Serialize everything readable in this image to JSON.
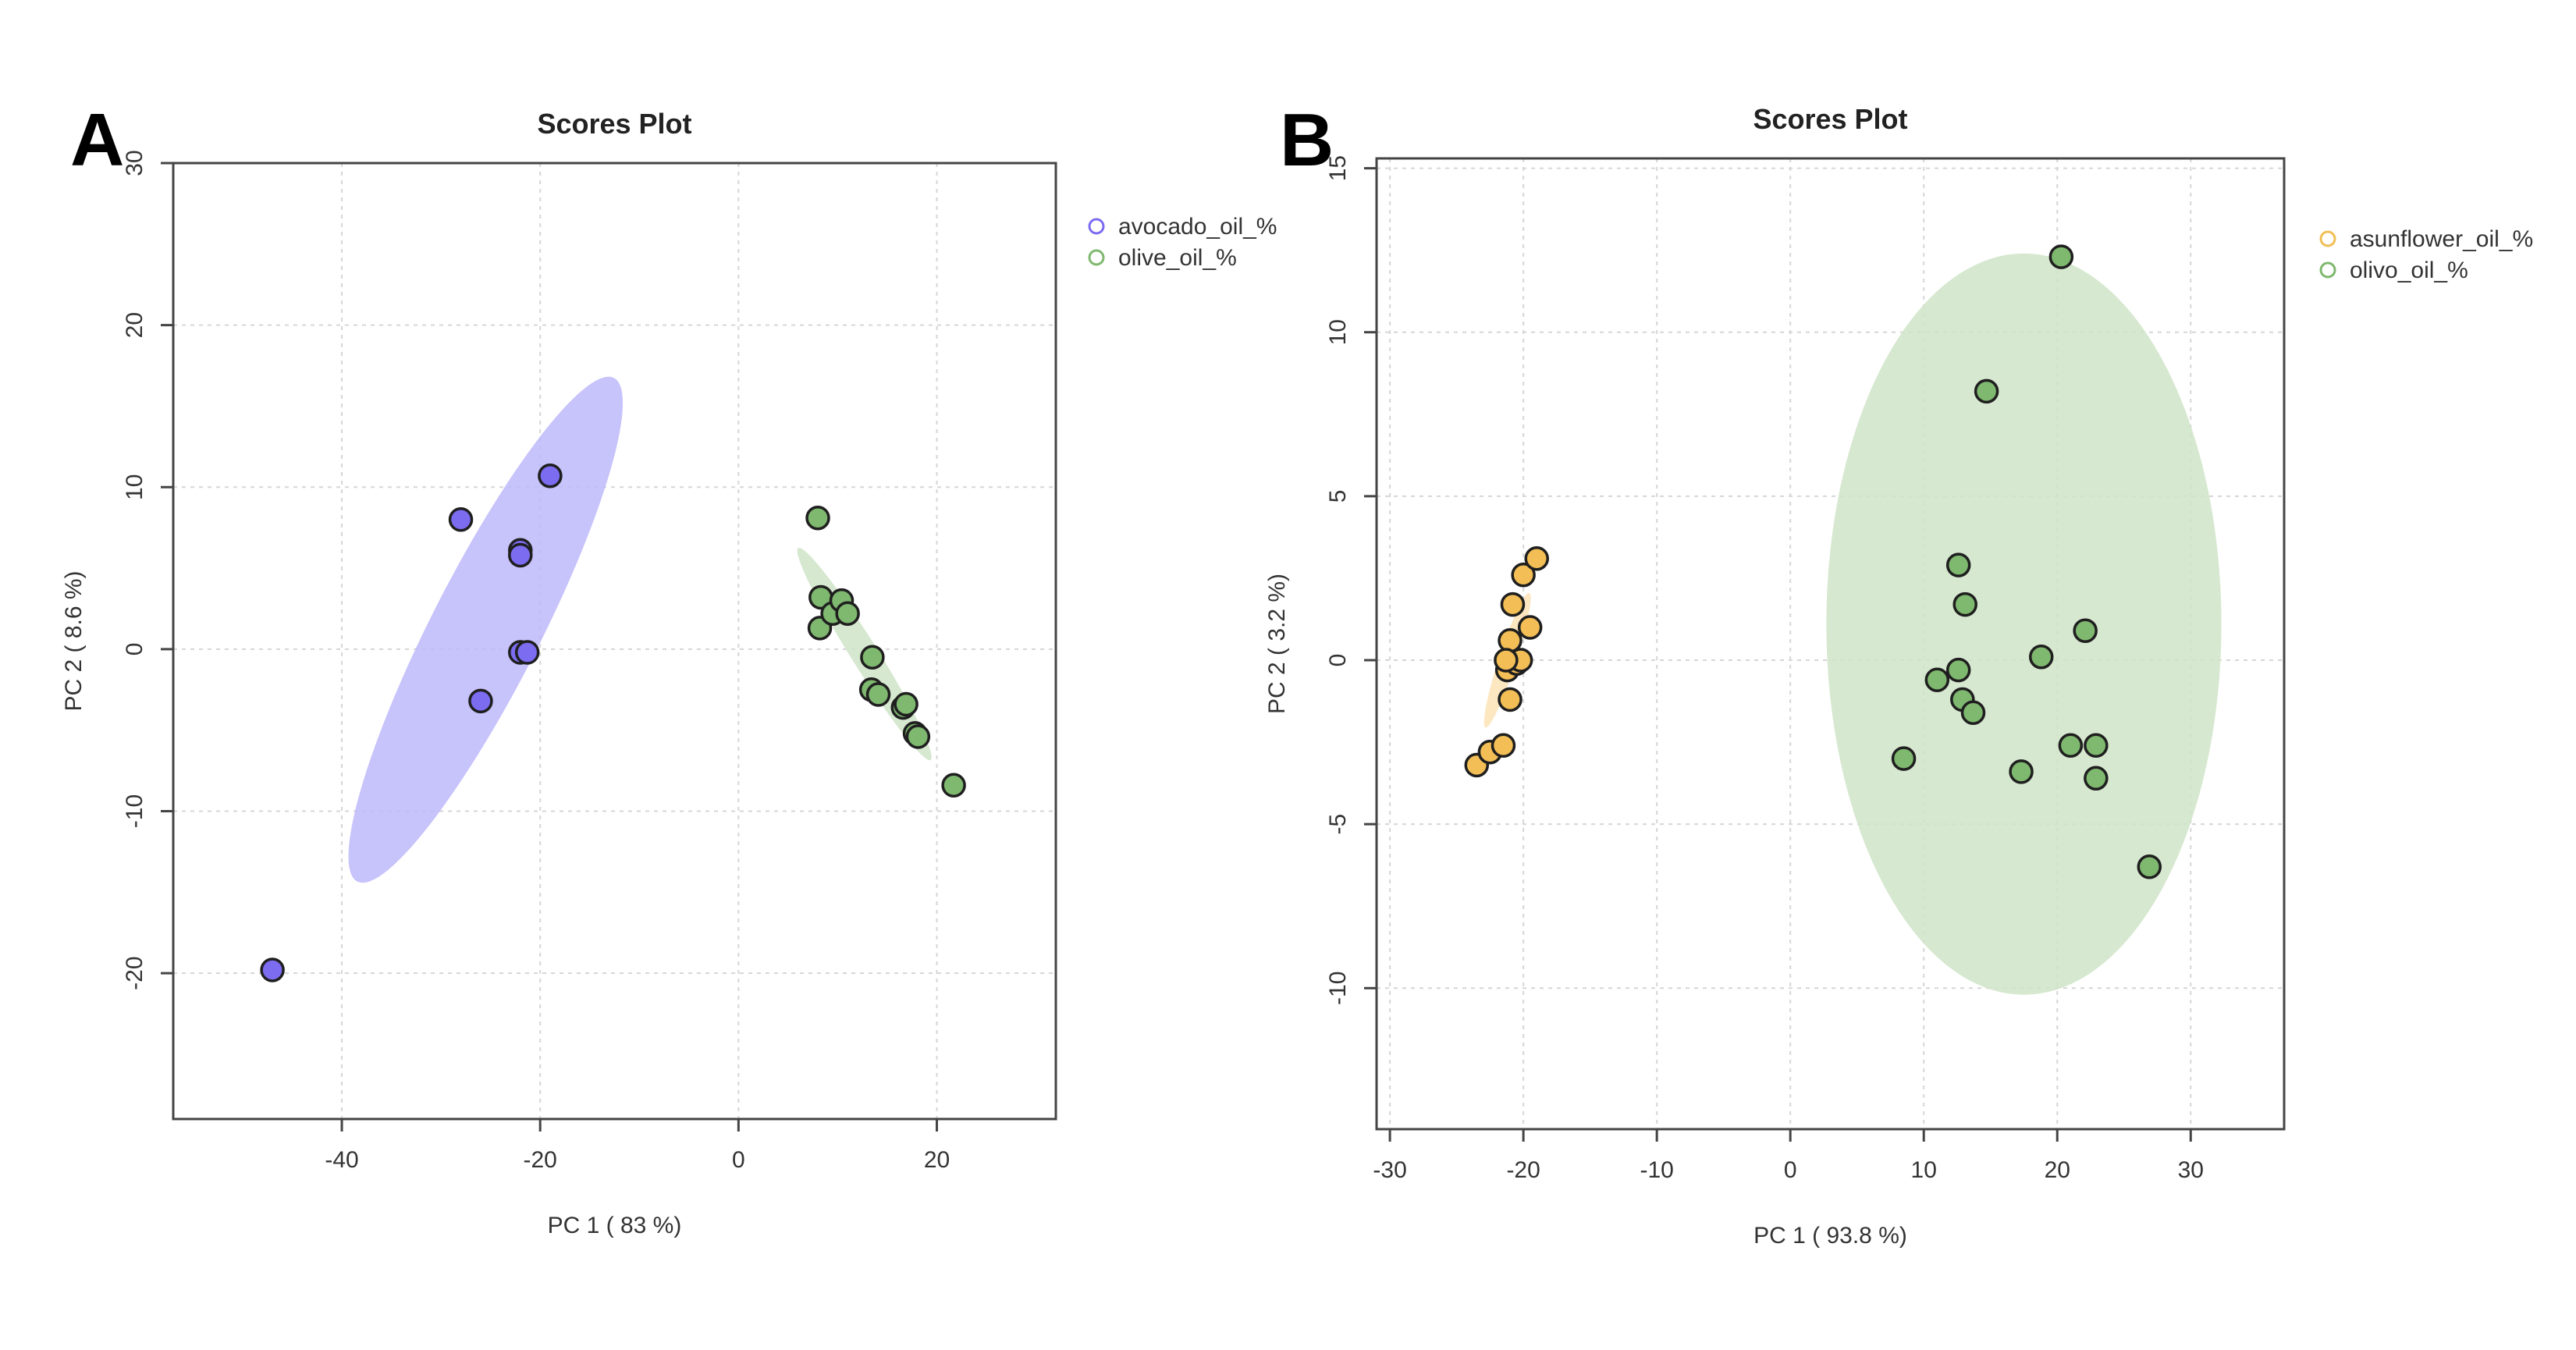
{
  "chart_data": [
    {
      "panel": "A",
      "type": "scatter",
      "title": "Scores Plot",
      "xlabel": "PC 1 ( 83 %)",
      "ylabel": "PC 2 ( 8.6 %)",
      "xlim": [
        -57,
        32
      ],
      "ylim": [
        -29,
        30
      ],
      "xticks": [
        -40,
        -20,
        0,
        20
      ],
      "yticks": [
        -20,
        -10,
        0,
        10,
        20,
        30
      ],
      "grid": true,
      "legend_position": "top-right (outside)",
      "series": [
        {
          "name": "avocado_oil_%",
          "color": "#7B6CF0",
          "ellipse_color": "#BDB8FA",
          "points": [
            [
              -47,
              -19.8
            ],
            [
              -28,
              8
            ],
            [
              -26,
              -3.2
            ],
            [
              -22,
              6.1
            ],
            [
              -22,
              5.8
            ],
            [
              -22,
              -0.2
            ],
            [
              -21.3,
              -0.2
            ],
            [
              -19,
              10.7
            ]
          ],
          "ellipse": {
            "cx": -25.5,
            "cy": 1.2,
            "rx": 28.5,
            "ry": 5.5,
            "angle_deg": 63
          }
        },
        {
          "name": "olive_oil_%",
          "color": "#7FB86F",
          "ellipse_color": "#CFE4C7",
          "points": [
            [
              8,
              8.1
            ],
            [
              8.3,
              3.2
            ],
            [
              8.2,
              1.3
            ],
            [
              9.5,
              2.2
            ],
            [
              10.4,
              3
            ],
            [
              11,
              2.2
            ],
            [
              13.5,
              -0.5
            ],
            [
              13.4,
              -2.5
            ],
            [
              14.1,
              -2.8
            ],
            [
              16.6,
              -3.6
            ],
            [
              16.9,
              -3.4
            ],
            [
              17.8,
              -5.2
            ],
            [
              18.1,
              -5.4
            ],
            [
              21.7,
              -8.4
            ]
          ],
          "ellipse": {
            "cx": 12.7,
            "cy": -0.3,
            "rx": 12.6,
            "ry": 1.35,
            "angle_deg": -58
          }
        }
      ]
    },
    {
      "panel": "B",
      "type": "scatter",
      "title": "Scores Plot",
      "xlabel": "PC 1 ( 93.8 %)",
      "ylabel": "PC 2 ( 3.2 %)",
      "xlim": [
        -31,
        37
      ],
      "ylim": [
        -14.3,
        15.3
      ],
      "xticks": [
        -30,
        -20,
        -10,
        0,
        10,
        20,
        30
      ],
      "yticks": [
        -10,
        -5,
        0,
        5,
        10,
        15
      ],
      "grid": true,
      "legend_position": "top-right (outside)",
      "series": [
        {
          "name": "asunflower_oil_%",
          "color": "#F2BE55",
          "ellipse_color": "#FBE3B6",
          "points": [
            [
              -23.5,
              -3.2
            ],
            [
              -22.5,
              -2.8
            ],
            [
              -21.5,
              -2.6
            ],
            [
              -21.2,
              -0.3
            ],
            [
              -21,
              -1.2
            ],
            [
              -21,
              0.6
            ],
            [
              -20.8,
              1.7
            ],
            [
              -20.5,
              -0.1
            ],
            [
              -20.2,
              0
            ],
            [
              -20,
              2.6
            ],
            [
              -19.5,
              1
            ],
            [
              -19,
              3.1
            ],
            [
              -21.3,
              0
            ]
          ],
          "ellipse": {
            "cx": -21.2,
            "cy": 0,
            "rx": 5.3,
            "ry": 0.65,
            "angle_deg": 72
          }
        },
        {
          "name": "olivo_oil_%",
          "color": "#7FB86F",
          "ellipse_color": "#CFE4C7",
          "points": [
            [
              20.3,
              12.3
            ],
            [
              14.7,
              8.2
            ],
            [
              12.6,
              2.9
            ],
            [
              13.1,
              1.7
            ],
            [
              22.1,
              0.9
            ],
            [
              18.8,
              0.1
            ],
            [
              12.6,
              -0.3
            ],
            [
              11,
              -0.6
            ],
            [
              12.9,
              -1.2
            ],
            [
              13.7,
              -1.6
            ],
            [
              8.5,
              -3
            ],
            [
              17.3,
              -3.4
            ],
            [
              21,
              -2.6
            ],
            [
              22.9,
              -2.6
            ],
            [
              22.9,
              -3.6
            ],
            [
              26.9,
              -6.3
            ]
          ],
          "ellipse": {
            "cx": 17.5,
            "cy": 1.1,
            "rx": 14.8,
            "ry": 11.3,
            "angle_deg": 0
          }
        }
      ]
    }
  ]
}
